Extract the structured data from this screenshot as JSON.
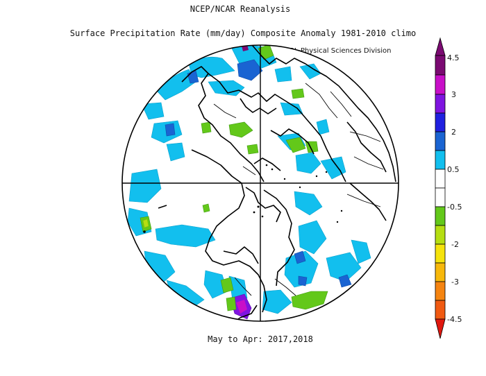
{
  "header": {
    "line1": "NCEP/NCAR Reanalysis",
    "line2": "Surface Precipitation Rate (mm/day) Composite Anomaly 1981-2010 climo",
    "credit": "NOAA/ESRL Physical Sciences Division"
  },
  "footer": {
    "period": "May to Apr: 2017,2018"
  },
  "colorbar": {
    "labels": [
      "4.5",
      "3",
      "2",
      "0.5",
      "-0.5",
      "-2",
      "-3",
      "-4.5"
    ],
    "colors": {
      "dark_purple": "#7b0a72",
      "magenta": "#c80fc8",
      "violet": "#7f14e0",
      "blue": "#2020e0",
      "mid_blue": "#1a64d2",
      "cyan": "#12bfee",
      "white": "#ffffff",
      "green": "#63c81a",
      "yellow_green": "#b5de12",
      "yellow": "#f5e30c",
      "gold": "#f7b80b",
      "orange": "#f58410",
      "orange_red": "#f05a12",
      "red": "#e0180f"
    }
  }
}
